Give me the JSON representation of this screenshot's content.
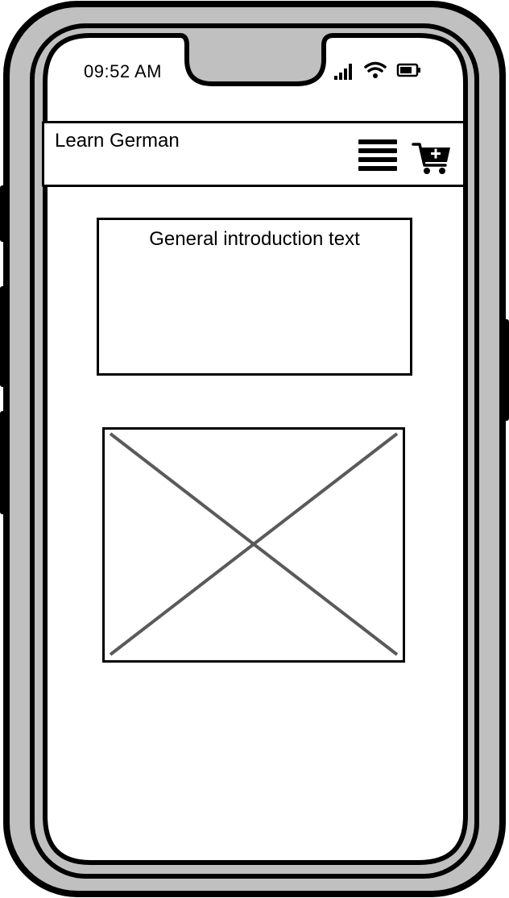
{
  "status_bar": {
    "time": "09:52 AM",
    "icons": [
      "signal-icon",
      "wifi-icon",
      "battery-icon"
    ]
  },
  "header": {
    "title": "Learn German",
    "menu_icon": "hamburger-menu-icon",
    "cart_icon": "cart-add-icon"
  },
  "intro": {
    "text": "General introduction text"
  },
  "image": {
    "type": "placeholder"
  },
  "colors": {
    "device_frame": "#c0c0c0",
    "outline": "#000000",
    "screen": "#ffffff",
    "placeholder_cross": "#5a5a5a"
  }
}
